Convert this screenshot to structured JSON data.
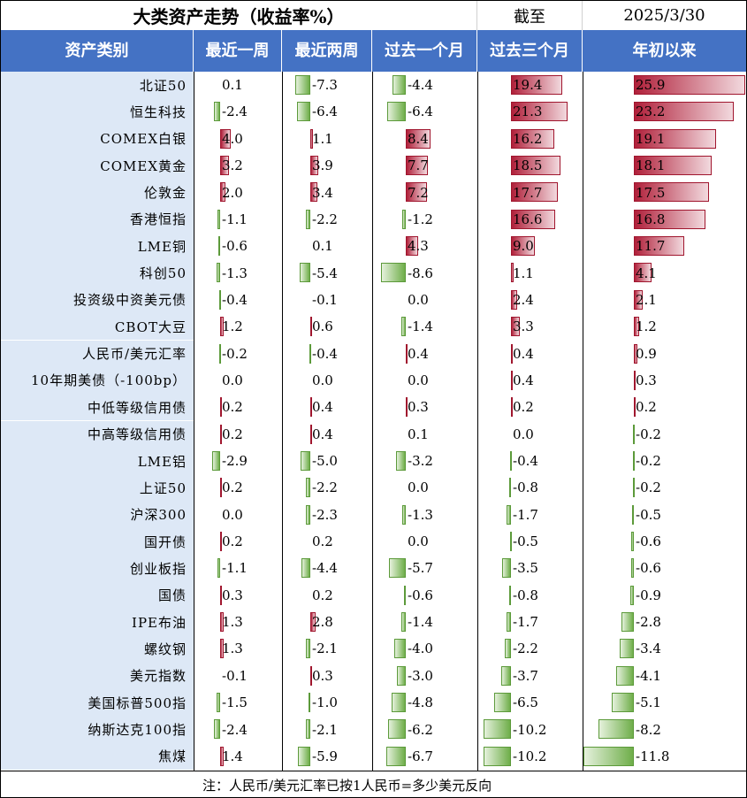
{
  "title": "大类资产走势（收益率%）",
  "asof_label": "截至",
  "date": "2025/3/30",
  "columns": [
    "资产类别",
    "最近一周",
    "最近两周",
    "过去一个月",
    "过去三个月",
    "年初以来"
  ],
  "rows": [
    {
      "name": "北证50",
      "v": [
        0.1,
        -7.3,
        -4.4,
        19.4,
        25.9
      ]
    },
    {
      "name": "恒生科技",
      "v": [
        -2.4,
        -6.4,
        -6.4,
        21.3,
        23.2
      ]
    },
    {
      "name": "COMEX白银",
      "v": [
        4.0,
        1.1,
        8.4,
        16.2,
        19.1
      ]
    },
    {
      "name": "COMEX黄金",
      "v": [
        3.2,
        3.9,
        7.7,
        18.5,
        18.1
      ]
    },
    {
      "name": "伦敦金",
      "v": [
        2.0,
        3.4,
        7.2,
        17.7,
        17.5
      ]
    },
    {
      "name": "香港恒指",
      "v": [
        -1.1,
        -2.2,
        -1.2,
        16.6,
        16.8
      ]
    },
    {
      "name": "LME铜",
      "v": [
        -0.6,
        0.1,
        4.3,
        9.0,
        11.7
      ]
    },
    {
      "name": "科创50",
      "v": [
        -1.3,
        -5.4,
        -8.6,
        1.1,
        4.1
      ]
    },
    {
      "name": "投资级中资美元债",
      "v": [
        -0.4,
        -0.1,
        0.0,
        2.4,
        2.1
      ]
    },
    {
      "name": "CBOT大豆",
      "v": [
        1.2,
        0.6,
        -1.4,
        3.3,
        1.2
      ]
    },
    {
      "name": "人民币/美元汇率",
      "v": [
        -0.2,
        -0.4,
        0.4,
        0.4,
        0.9
      ]
    },
    {
      "name": "10年期美债（-100bp）",
      "v": [
        0.0,
        0.0,
        0.0,
        0.4,
        0.3
      ]
    },
    {
      "name": "中低等级信用债",
      "v": [
        0.2,
        0.4,
        0.3,
        0.2,
        0.2
      ]
    },
    {
      "name": "中高等级信用债",
      "v": [
        0.2,
        0.4,
        0.1,
        0.0,
        -0.2
      ]
    },
    {
      "name": "LME铝",
      "v": [
        -2.9,
        -5.0,
        -3.2,
        -0.4,
        -0.2
      ]
    },
    {
      "name": "上证50",
      "v": [
        0.2,
        -2.2,
        0.0,
        -0.8,
        -0.2
      ]
    },
    {
      "name": "沪深300",
      "v": [
        0.0,
        -2.3,
        -1.3,
        -1.7,
        -0.5
      ]
    },
    {
      "name": "国开债",
      "v": [
        0.2,
        0.2,
        0.0,
        -0.5,
        -0.6
      ]
    },
    {
      "name": "创业板指",
      "v": [
        -1.1,
        -4.4,
        -5.7,
        -3.5,
        -0.6
      ]
    },
    {
      "name": "国债",
      "v": [
        0.3,
        0.2,
        -0.6,
        -0.8,
        -0.9
      ]
    },
    {
      "name": "IPE布油",
      "v": [
        1.3,
        2.8,
        -1.4,
        -1.7,
        -2.8
      ]
    },
    {
      "name": "螺纹钢",
      "v": [
        1.3,
        -2.1,
        -4.0,
        -2.2,
        -3.4
      ]
    },
    {
      "name": "美元指数",
      "v": [
        -0.1,
        0.3,
        -3.0,
        -3.7,
        -4.1
      ]
    },
    {
      "name": "美国标普500指",
      "v": [
        -1.5,
        -1.0,
        -4.8,
        -6.5,
        -5.1
      ]
    },
    {
      "name": "纳斯达克100指",
      "v": [
        -2.4,
        -2.1,
        -6.2,
        -10.2,
        -8.2
      ]
    },
    {
      "name": "焦煤",
      "v": [
        1.4,
        -5.9,
        -6.7,
        -10.2,
        -11.8
      ]
    }
  ],
  "note": "注：人民币/美元汇率已按1人民币=多少美元反向",
  "colors": {
    "header": "#4472c4",
    "label_bg": "#dde8f6",
    "positive": "#b0203a",
    "negative": "#6fae4a"
  }
}
